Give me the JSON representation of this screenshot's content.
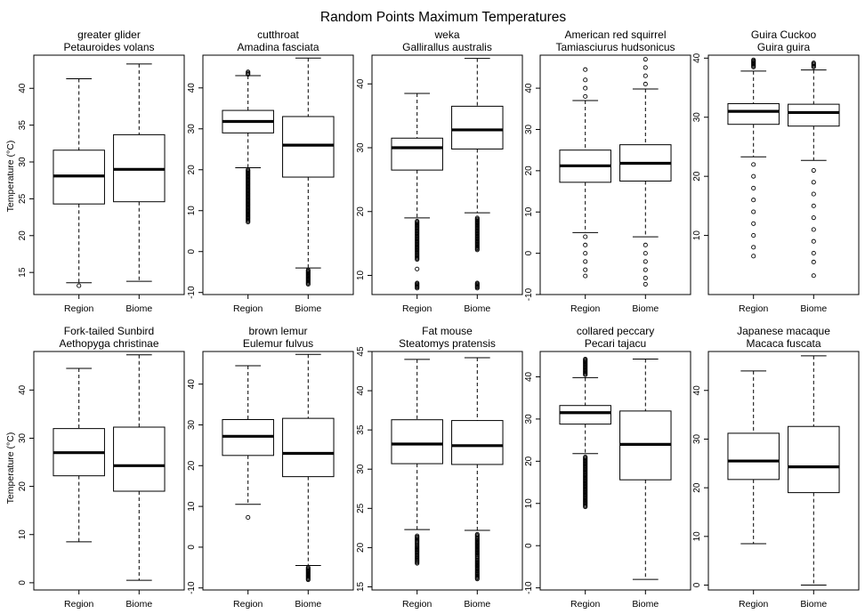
{
  "figure": {
    "title": "Random Points Maximum Temperatures",
    "ylabel": "Temperature (°C)"
  },
  "chart_data": [
    {
      "type": "box",
      "common_name": "greater glider",
      "scientific_name": "Petauroides volans",
      "ylim": [
        12,
        44.5
      ],
      "yticks": [
        15,
        20,
        25,
        30,
        35,
        40
      ],
      "categories": [
        "Region",
        "Biome"
      ],
      "boxes": [
        {
          "whisker_low": 13.6,
          "q1": 24.3,
          "median": 28.1,
          "q3": 31.6,
          "whisker_high": 41.3,
          "outliers": [
            13.2
          ]
        },
        {
          "whisker_low": 13.8,
          "q1": 24.6,
          "median": 29.0,
          "q3": 33.7,
          "whisker_high": 43.3,
          "outliers": []
        }
      ]
    },
    {
      "type": "box",
      "common_name": "cutthroat",
      "scientific_name": "Amadina fasciata",
      "ylim": [
        -10.5,
        48
      ],
      "yticks": [
        -10,
        0,
        10,
        20,
        30,
        40
      ],
      "categories": [
        "Region",
        "Biome"
      ],
      "boxes": [
        {
          "whisker_low": 20.5,
          "q1": 29.0,
          "median": 31.8,
          "q3": 34.5,
          "whisker_high": 43.0,
          "outliers": [
            7.2,
            8,
            9,
            10,
            11,
            12,
            13,
            14,
            15,
            16,
            17,
            18,
            19,
            20,
            43.3,
            43.6,
            43.9
          ]
        },
        {
          "whisker_low": -4.0,
          "q1": 18.2,
          "median": 26.0,
          "q3": 33.0,
          "whisker_high": 47.3,
          "outliers": [
            -4.5,
            -5,
            -5.5,
            -6,
            -6.5,
            -7,
            -7.5,
            -8
          ]
        }
      ]
    },
    {
      "type": "box",
      "common_name": "weka",
      "scientific_name": "Gallirallus australis",
      "ylim": [
        7,
        44.5
      ],
      "yticks": [
        10,
        20,
        30,
        40
      ],
      "categories": [
        "Region",
        "Biome"
      ],
      "boxes": [
        {
          "whisker_low": 19.0,
          "q1": 26.5,
          "median": 30.0,
          "q3": 31.5,
          "whisker_high": 38.5,
          "outliers": [
            8,
            8.8,
            11,
            12.5,
            13.5,
            14.5,
            15.5,
            16.5,
            17.5,
            18.5
          ]
        },
        {
          "whisker_low": 19.8,
          "q1": 29.8,
          "median": 32.8,
          "q3": 36.5,
          "whisker_high": 44.0,
          "outliers": [
            8,
            8.8,
            14,
            15,
            16,
            17,
            18,
            19
          ]
        }
      ]
    },
    {
      "type": "box",
      "common_name": "American red squirrel",
      "scientific_name": "Tamiasciurus hudsonicus",
      "ylim": [
        -10,
        48
      ],
      "yticks": [
        -10,
        0,
        10,
        20,
        30,
        40
      ],
      "categories": [
        "Region",
        "Biome"
      ],
      "boxes": [
        {
          "whisker_low": 5.0,
          "q1": 17.2,
          "median": 21.2,
          "q3": 25.0,
          "whisker_high": 37.0,
          "outliers": [
            -5.5,
            -4,
            -2,
            0,
            2,
            4,
            38,
            40,
            42,
            44.5
          ]
        },
        {
          "whisker_low": 4.0,
          "q1": 17.5,
          "median": 21.8,
          "q3": 26.3,
          "whisker_high": 39.8,
          "outliers": [
            -7.5,
            -6,
            -4,
            -2,
            0,
            2,
            41,
            43,
            45,
            47
          ]
        }
      ]
    },
    {
      "type": "box",
      "common_name": "Guira Cuckoo",
      "scientific_name": "Guira guira",
      "ylim": [
        0,
        40.5
      ],
      "yticks": [
        10,
        20,
        30,
        40
      ],
      "categories": [
        "Region",
        "Biome"
      ],
      "boxes": [
        {
          "whisker_low": 23.3,
          "q1": 28.8,
          "median": 31.0,
          "q3": 32.3,
          "whisker_high": 37.8,
          "outliers": [
            6.5,
            8,
            10,
            12,
            14,
            16,
            18,
            20,
            22,
            38.5,
            39.2,
            39.7
          ]
        },
        {
          "whisker_low": 22.7,
          "q1": 28.5,
          "median": 30.8,
          "q3": 32.2,
          "whisker_high": 38.0,
          "outliers": [
            3.2,
            5.5,
            7,
            9,
            11,
            13,
            15,
            17,
            19,
            21,
            38.5,
            39.2
          ]
        }
      ]
    },
    {
      "type": "box",
      "common_name": "Fork-tailed Sunbird",
      "scientific_name": "Aethopyga christinae",
      "ylim": [
        -1.5,
        48
      ],
      "yticks": [
        0,
        10,
        20,
        30,
        40
      ],
      "categories": [
        "Region",
        "Biome"
      ],
      "boxes": [
        {
          "whisker_low": 8.5,
          "q1": 22.2,
          "median": 27.0,
          "q3": 32.0,
          "whisker_high": 44.5,
          "outliers": []
        },
        {
          "whisker_low": 0.5,
          "q1": 19.0,
          "median": 24.3,
          "q3": 32.3,
          "whisker_high": 47.3,
          "outliers": []
        }
      ]
    },
    {
      "type": "box",
      "common_name": "brown lemur",
      "scientific_name": "Eulemur fulvus",
      "ylim": [
        -10.5,
        48
      ],
      "yticks": [
        -10,
        0,
        10,
        20,
        30,
        40
      ],
      "categories": [
        "Region",
        "Biome"
      ],
      "boxes": [
        {
          "whisker_low": 10.5,
          "q1": 22.5,
          "median": 27.2,
          "q3": 31.3,
          "whisker_high": 44.5,
          "outliers": [
            7.3
          ]
        },
        {
          "whisker_low": -4.5,
          "q1": 17.3,
          "median": 23.0,
          "q3": 31.6,
          "whisker_high": 47.3,
          "outliers": [
            -5,
            -5.5,
            -6,
            -6.5,
            -7,
            -7.5,
            -8
          ]
        }
      ]
    },
    {
      "type": "box",
      "common_name": "Fat mouse",
      "scientific_name": "Steatomys pratensis",
      "ylim": [
        14.6,
        45
      ],
      "yticks": [
        15,
        20,
        25,
        30,
        35,
        40,
        45
      ],
      "categories": [
        "Region",
        "Biome"
      ],
      "boxes": [
        {
          "whisker_low": 22.3,
          "q1": 30.7,
          "median": 33.2,
          "q3": 36.3,
          "whisker_high": 44.0,
          "outliers": [
            18,
            18.7,
            19.4,
            20.2,
            20.8,
            21.5
          ]
        },
        {
          "whisker_low": 22.2,
          "q1": 30.6,
          "median": 33.0,
          "q3": 36.2,
          "whisker_high": 44.2,
          "outliers": [
            16,
            16.8,
            17.5,
            18.4,
            19,
            20.2,
            20.7,
            21.1,
            21.4,
            21.7
          ]
        }
      ]
    },
    {
      "type": "box",
      "common_name": "collared peccary",
      "scientific_name": "Pecari tajacu",
      "ylim": [
        -10.5,
        46
      ],
      "yticks": [
        -10,
        0,
        10,
        20,
        30,
        40
      ],
      "categories": [
        "Region",
        "Biome"
      ],
      "boxes": [
        {
          "whisker_low": 21.8,
          "q1": 28.8,
          "median": 31.5,
          "q3": 33.2,
          "whisker_high": 39.8,
          "outliers": [
            9.2,
            10,
            11,
            12,
            13,
            14,
            15,
            16,
            17,
            18,
            19,
            20,
            21,
            40.5,
            41.5,
            42.5,
            43.5,
            44.2
          ]
        },
        {
          "whisker_low": -8.0,
          "q1": 15.6,
          "median": 24.0,
          "q3": 31.9,
          "whisker_high": 44.2,
          "outliers": []
        }
      ]
    },
    {
      "type": "box",
      "common_name": "Japanese macaque",
      "scientific_name": "Macaca fuscata",
      "ylim": [
        -1,
        48
      ],
      "yticks": [
        0,
        10,
        20,
        30,
        40
      ],
      "categories": [
        "Region",
        "Biome"
      ],
      "boxes": [
        {
          "whisker_low": 8.5,
          "q1": 21.7,
          "median": 25.5,
          "q3": 31.2,
          "whisker_high": 44.0,
          "outliers": []
        },
        {
          "whisker_low": 0.0,
          "q1": 19.0,
          "median": 24.3,
          "q3": 32.6,
          "whisker_high": 47.1,
          "outliers": []
        }
      ]
    }
  ]
}
